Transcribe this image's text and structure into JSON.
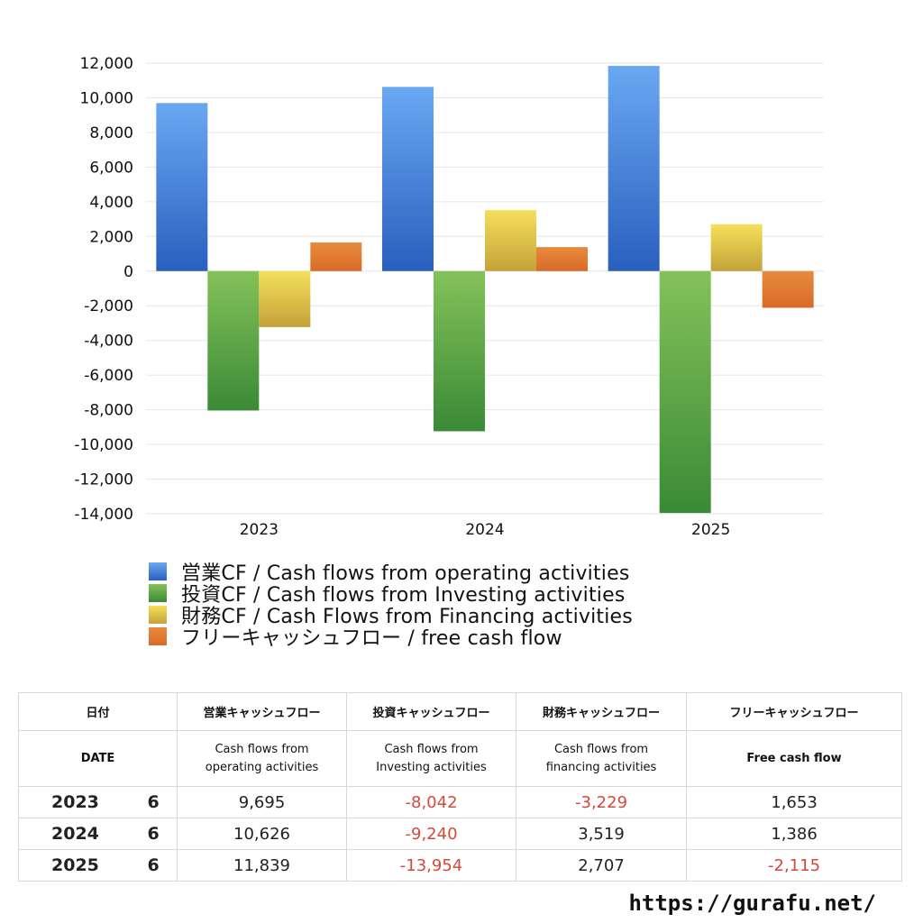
{
  "chart_data": {
    "type": "bar",
    "categories": [
      "2023",
      "2024",
      "2025"
    ],
    "ylim": [
      -14000,
      12000
    ],
    "yticks": [
      12000,
      10000,
      8000,
      6000,
      4000,
      2000,
      0,
      -2000,
      -4000,
      -6000,
      -8000,
      -10000,
      -12000,
      -14000
    ],
    "ytick_labels": [
      "12,000",
      "10,000",
      "8,000",
      "6,000",
      "4,000",
      "2,000",
      "0",
      "-2,000",
      "-4,000",
      "-6,000",
      "-8,000",
      "-10,000",
      "-12,000",
      "-14,000"
    ],
    "grid": true,
    "legend_position": "bottom",
    "series": [
      {
        "name": "営業CF / Cash flows from operating activities",
        "values": [
          9695,
          10626,
          11839
        ],
        "color_top": "#6aa8f2",
        "color_bottom": "#2a5fbe"
      },
      {
        "name": "投資CF / Cash flows from Investing activities",
        "values": [
          -8042,
          -9240,
          -13954
        ],
        "color_top": "#84c25a",
        "color_bottom": "#3a8a36"
      },
      {
        "name": "財務CF / Cash Flows from Financing activities",
        "values": [
          -3229,
          3519,
          2707
        ],
        "color_top": "#f4e05a",
        "color_bottom": "#c4a23a"
      },
      {
        "name": "フリーキャッシュフロー / free cash flow",
        "values": [
          1653,
          1386,
          -2115
        ],
        "color_top": "#e88b3e",
        "color_bottom": "#d86a28"
      }
    ]
  },
  "table": {
    "headers_jp": [
      "日付",
      "営業キャッシュフロー",
      "投資キャッシュフロー",
      "財務キャッシュフロー",
      "フリーキャッシュフロー"
    ],
    "headers_en": [
      "DATE",
      "Cash flows from operating activities",
      "Cash flows from Investing activities",
      "Cash flows from financing activities",
      "Free cash flow"
    ],
    "rows": [
      {
        "year": "2023",
        "month": "6",
        "op": "9,695",
        "inv": "-8,042",
        "fin": "-3,229",
        "fcf": "1,653"
      },
      {
        "year": "2024",
        "month": "6",
        "op": "10,626",
        "inv": "-9,240",
        "fin": "3,519",
        "fcf": "1,386"
      },
      {
        "year": "2025",
        "month": "6",
        "op": "11,839",
        "inv": "-13,954",
        "fin": "2,707",
        "fcf": "-2,115"
      }
    ],
    "negative_color": "#d24a3a"
  },
  "site": "https://gurafu.net/"
}
